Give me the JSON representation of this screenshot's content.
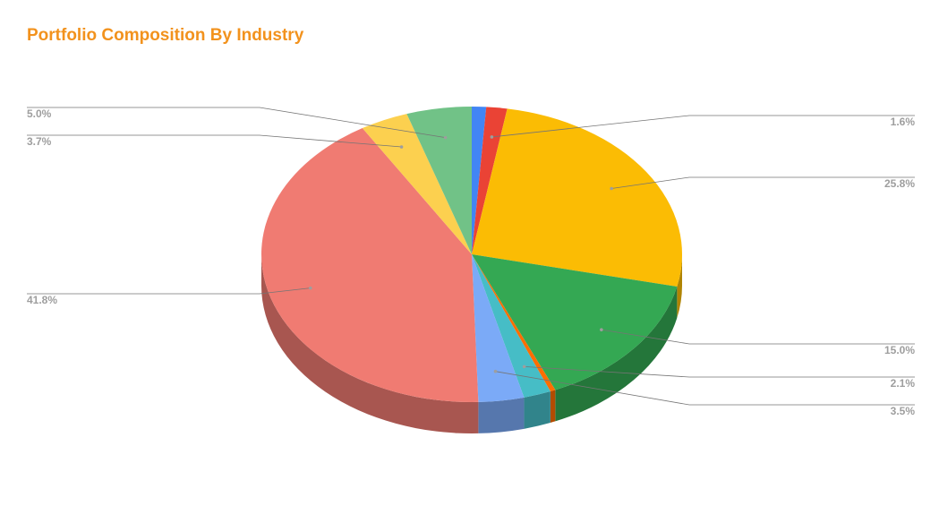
{
  "chart_data": {
    "type": "pie3d",
    "title": "Portfolio Composition By Industry",
    "series": [
      {
        "values": [
          1.1,
          1.6,
          25.8,
          15.0,
          0.4,
          2.1,
          3.5,
          41.8,
          3.7,
          5.0
        ],
        "value_labels": [
          null,
          "1.6%",
          "25.8%",
          "15.0%",
          null,
          "2.1%",
          "3.5%",
          "41.8%",
          "3.7%",
          "5.0%"
        ],
        "colors": [
          "#4285f4",
          "#ea4335",
          "#fbbc04",
          "#34a853",
          "#ff6d01",
          "#46bdc6",
          "#7baaf7",
          "#f07b72",
          "#fcd04f",
          "#71c287"
        ]
      }
    ]
  }
}
